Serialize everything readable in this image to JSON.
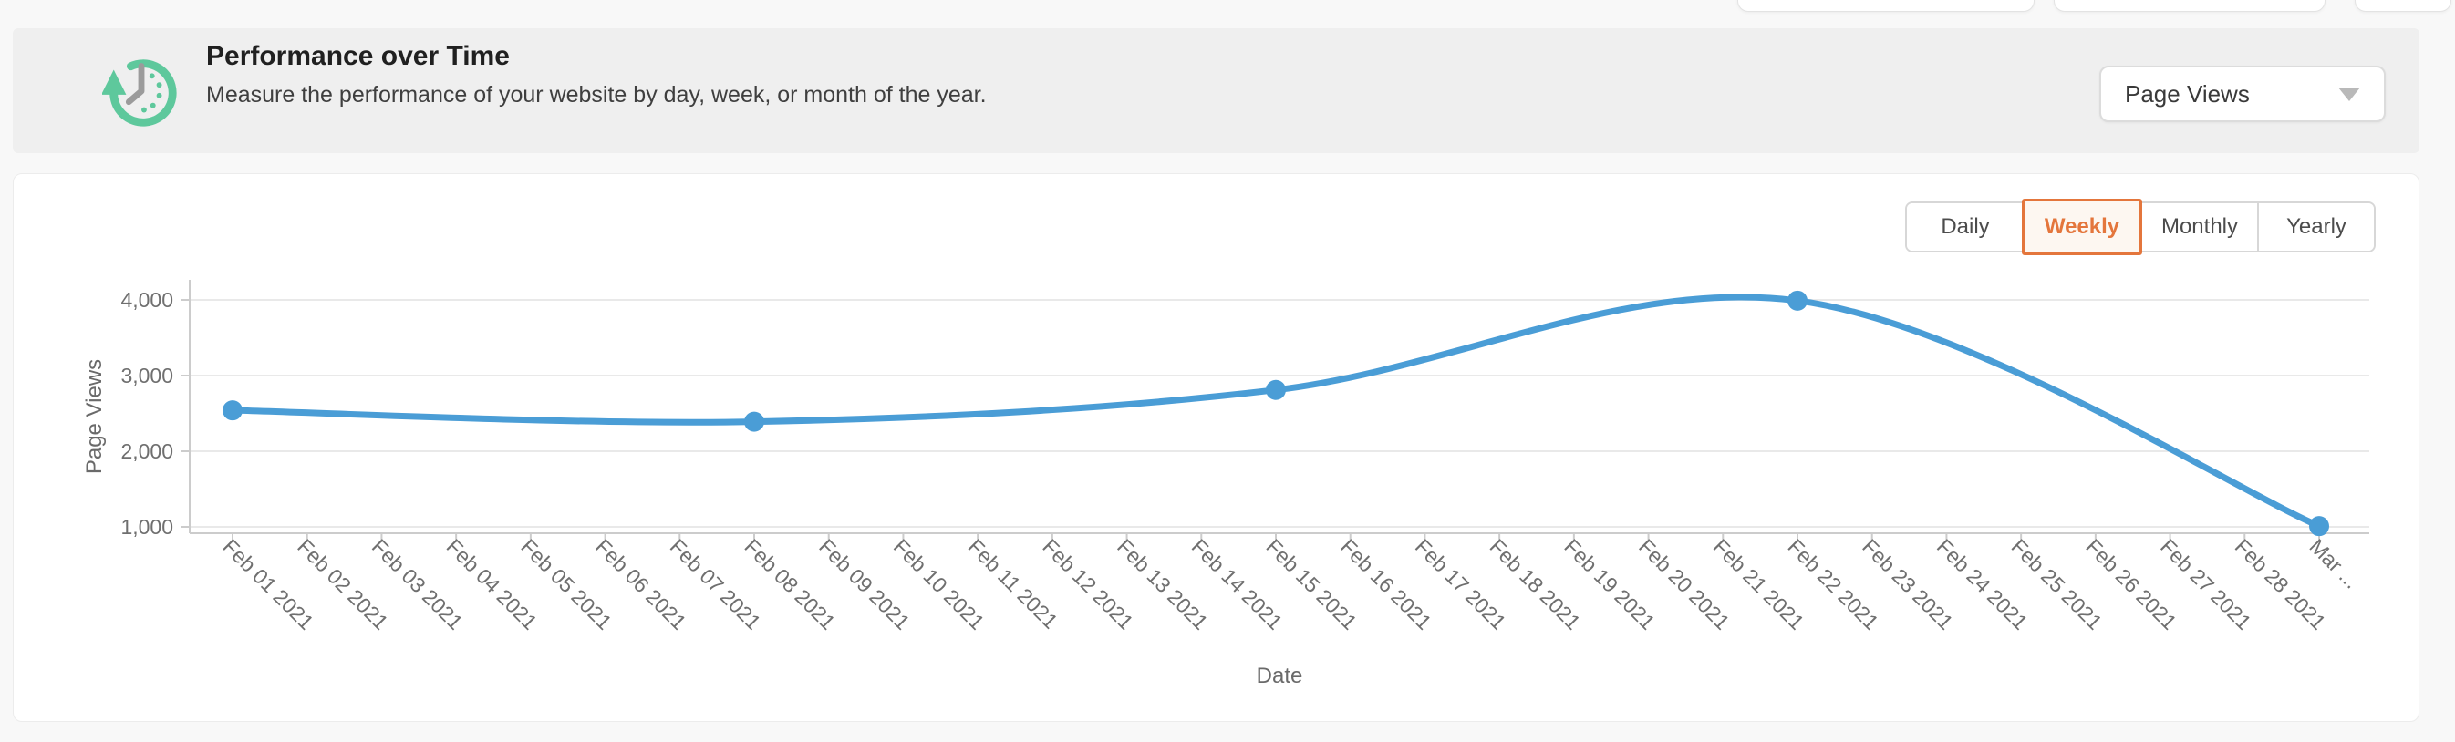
{
  "header": {
    "title": "Performance over Time",
    "subtitle": "Measure the performance of your website by day, week, or month of the year.",
    "icon": "history-clock",
    "icon_color": "#5ec89c",
    "metric_dropdown": {
      "value": "Page Views"
    }
  },
  "controls": {
    "active_tab_color": "#e4763c",
    "tabs": [
      {
        "label": "Daily",
        "active": false
      },
      {
        "label": "Weekly",
        "active": true
      },
      {
        "label": "Monthly",
        "active": false
      },
      {
        "label": "Yearly",
        "active": false
      }
    ]
  },
  "chart_data": {
    "type": "line",
    "smooth": true,
    "grid": true,
    "legend": false,
    "xlabel": "Date",
    "ylabel": "Page Views",
    "line_color": "#4a9dd6",
    "ylim": [
      1000,
      4000
    ],
    "y_ticks": [
      {
        "value": 1000,
        "label": "1,000"
      },
      {
        "value": 2000,
        "label": "2,000"
      },
      {
        "value": 3000,
        "label": "3,000"
      },
      {
        "value": 4000,
        "label": "4,000"
      }
    ],
    "categories": [
      "Feb 01 2021",
      "Feb 02 2021",
      "Feb 03 2021",
      "Feb 04 2021",
      "Feb 05 2021",
      "Feb 06 2021",
      "Feb 07 2021",
      "Feb 08 2021",
      "Feb 09 2021",
      "Feb 10 2021",
      "Feb 11 2021",
      "Feb 12 2021",
      "Feb 13 2021",
      "Feb 14 2021",
      "Feb 15 2021",
      "Feb 16 2021",
      "Feb 17 2021",
      "Feb 18 2021",
      "Feb 19 2021",
      "Feb 20 2021",
      "Feb 21 2021",
      "Feb 22 2021",
      "Feb 23 2021",
      "Feb 24 2021",
      "Feb 25 2021",
      "Feb 26 2021",
      "Feb 27 2021",
      "Feb 28 2021",
      "Mar ..."
    ],
    "series": [
      {
        "name": "Page Views",
        "points": [
          {
            "x": "Feb 01 2021",
            "y": 2540
          },
          {
            "x": "Feb 08 2021",
            "y": 2390
          },
          {
            "x": "Feb 15 2021",
            "y": 2810
          },
          {
            "x": "Feb 22 2021",
            "y": 3990
          },
          {
            "x": "Mar ...",
            "y": 1010
          }
        ]
      }
    ]
  }
}
